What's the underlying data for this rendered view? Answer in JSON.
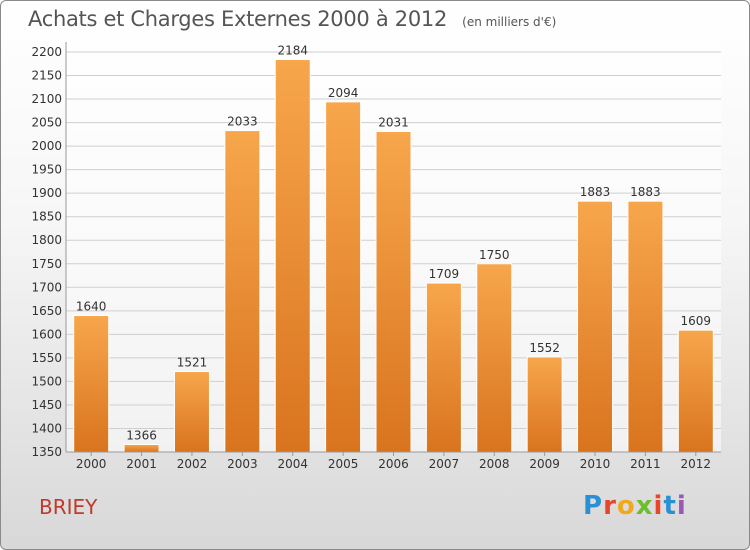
{
  "header": {
    "title": "Achats et Charges Externes 2000 à 2012",
    "unit": "(en milliers d'€)"
  },
  "footer": {
    "commune": "BRIEY",
    "logo_text": "Proxiti",
    "logo_colors": [
      "#2b8fd6",
      "#e8452c",
      "#f0a91e",
      "#6cbf2c",
      "#e8452c",
      "#2b8fd6",
      "#9b59b6"
    ]
  },
  "colors": {
    "bar_top": "#f7a64c",
    "bar_bottom": "#d9741e",
    "grid": "#cfcfcf",
    "axis_text": "#333333",
    "commune_text": "#c0392b"
  },
  "chart_data": {
    "type": "bar",
    "title": "Achats et Charges Externes 2000 à 2012",
    "subtitle": "(en milliers d'€)",
    "xlabel": "",
    "ylabel": "",
    "categories": [
      "2000",
      "2001",
      "2002",
      "2003",
      "2004",
      "2005",
      "2006",
      "2007",
      "2008",
      "2009",
      "2010",
      "2011",
      "2012"
    ],
    "values": [
      1640,
      1366,
      1521,
      2033,
      2184,
      2094,
      2031,
      1709,
      1750,
      1552,
      1883,
      1883,
      1609
    ],
    "ylim": [
      1350,
      2200
    ],
    "yticks": [
      1350,
      1400,
      1450,
      1500,
      1550,
      1600,
      1650,
      1700,
      1750,
      1800,
      1850,
      1900,
      1950,
      2000,
      2050,
      2100,
      2150,
      2200
    ],
    "grid": true,
    "data_labels": true
  }
}
